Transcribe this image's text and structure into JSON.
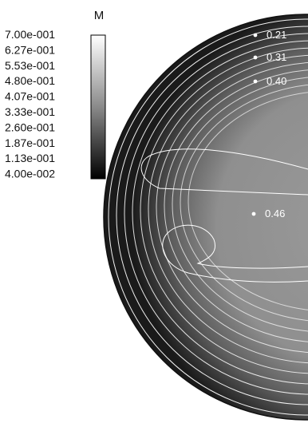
{
  "chart_data": {
    "type": "heatmap",
    "colorbar": {
      "title": "M",
      "tick_labels": [
        "7.00e-001",
        "6.27e-001",
        "5.53e-001",
        "4.80e-001",
        "4.07e-001",
        "3.33e-001",
        "2.60e-001",
        "1.87e-001",
        "1.13e-001",
        "4.00e-002"
      ],
      "min": 0.04,
      "max": 0.7,
      "colormap": "grayscale (black = low, white = high)"
    },
    "probes": [
      {
        "label": "0.21",
        "value": 0.21
      },
      {
        "label": "0.31",
        "value": 0.31
      },
      {
        "label": "0.40",
        "value": 0.4
      },
      {
        "label": "0.46",
        "value": 0.46
      }
    ],
    "contour_color": "#ffffff",
    "background_color": "#ffffff"
  }
}
